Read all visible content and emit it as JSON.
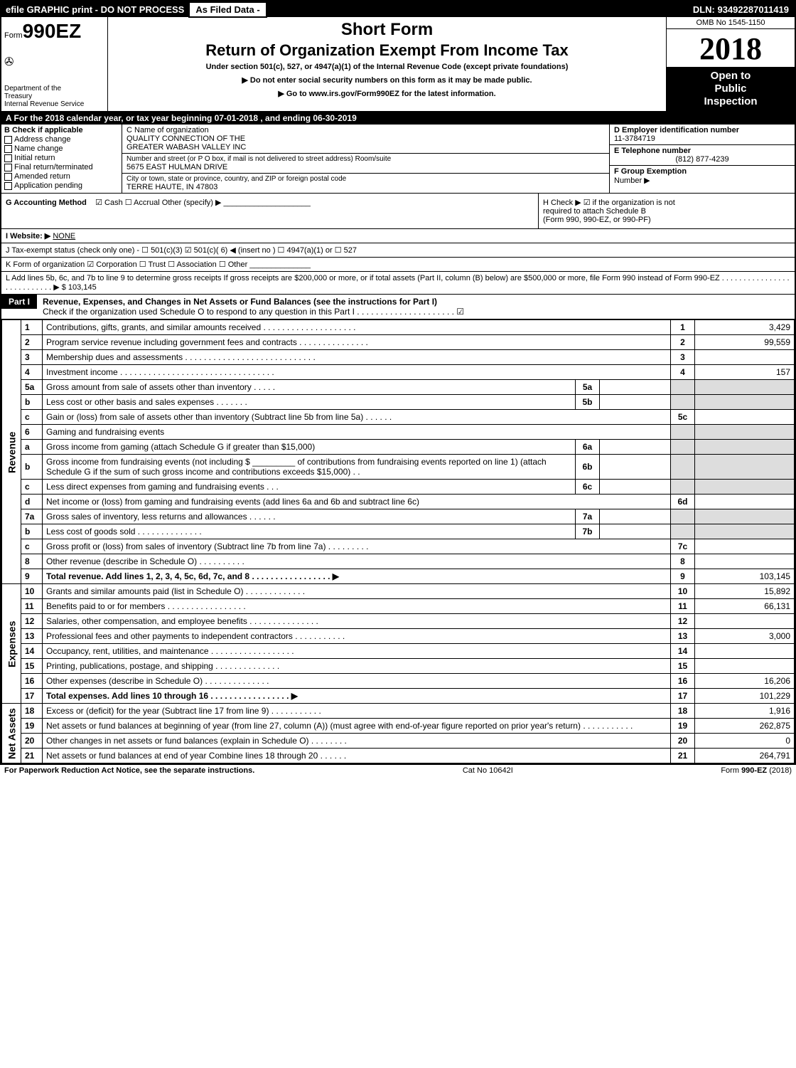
{
  "topbar": {
    "left": "efile GRAPHIC print - DO NOT PROCESS",
    "mid": "As Filed Data -",
    "right": "DLN: 93492287011419"
  },
  "header": {
    "form_prefix": "Form",
    "form_number": "990EZ",
    "dept1": "Department of the",
    "dept2": "Treasury",
    "dept3": "Internal Revenue Service",
    "short_form": "Short Form",
    "return_title": "Return of Organization Exempt From Income Tax",
    "sub": "Under section 501(c), 527, or 4947(a)(1) of the Internal Revenue Code (except private foundations)",
    "arrow1": "▶ Do not enter social security numbers on this form as it may be made public.",
    "arrow2": "▶ Go to www.irs.gov/Form990EZ for the latest information.",
    "omb": "OMB No 1545-1150",
    "year": "2018",
    "open1": "Open to",
    "open2": "Public",
    "open3": "Inspection"
  },
  "lineA": "A  For the 2018 calendar year, or tax year beginning 07-01-2018           , and ending 06-30-2019",
  "B": {
    "title": "B  Check if applicable",
    "items": [
      "Address change",
      "Name change",
      "Initial return",
      "Final return/terminated",
      "Amended return",
      "Application pending"
    ]
  },
  "C": {
    "label": "C Name of organization",
    "name1": "QUALITY CONNECTION OF THE",
    "name2": "GREATER WABASH VALLEY INC",
    "addr_label": "Number and street (or P O box, if mail is not delivered to street address)  Room/suite",
    "addr": "5675 EAST HULMAN DRIVE",
    "city_label": "City or town, state or province, country, and ZIP or foreign postal code",
    "city": "TERRE HAUTE, IN  47803"
  },
  "D": {
    "label": "D Employer identification number",
    "ein": "11-3784719",
    "E_label": "E Telephone number",
    "phone": "(812) 877-4239",
    "F_label": "F Group Exemption",
    "F_label2": "Number   ▶"
  },
  "G": {
    "label": "G Accounting Method",
    "opts": "☑ Cash   ☐ Accrual   Other (specify) ▶ ____________________"
  },
  "H": {
    "text1": "H   Check ▶  ☑  if the organization is not",
    "text2": "required to attach Schedule B",
    "text3": "(Form 990, 990-EZ, or 990-PF)"
  },
  "I": {
    "label": "I Website: ▶",
    "val": "NONE"
  },
  "J": "J Tax-exempt status (check only one) - ☐ 501(c)(3)  ☑ 501(c)( 6) ◀ (insert no ) ☐ 4947(a)(1) or ☐ 527",
  "K": "K Form of organization    ☑ Corporation  ☐ Trust  ☐ Association  ☐ Other  ______________",
  "L": {
    "text": "L Add lines 5b, 6c, and 7b to line 9 to determine gross receipts  If gross receipts are $200,000 or more, or if total assets (Part II, column (B) below) are $500,000 or more, file Form 990 instead of Form 990-EZ  .  .  .  .  .  .  .  .  .  .  .  .  .  .  .  .  .  .  .  .  .  .  .  .  .  .  . ▶ $ 103,145"
  },
  "partI": {
    "label": "Part I",
    "title": "Revenue, Expenses, and Changes in Net Assets or Fund Balances (see the instructions for Part I)",
    "sub": "Check if the organization used Schedule O to respond to any question in this Part I  .  .  .  .  .  .  .  .  .  .  .  .  .  .  .  .  .  .  .  .  . ☑"
  },
  "sections": {
    "revenue": "Revenue",
    "expenses": "Expenses",
    "net": "Net Assets"
  },
  "rows": [
    {
      "n": "1",
      "d": "Contributions, gifts, grants, and similar amounts received  .  .  .  .  .  .  .  .  .  .  .  .  .  .  .  .  .  .  .  .",
      "r": "1",
      "v": "3,429"
    },
    {
      "n": "2",
      "d": "Program service revenue including government fees and contracts  .  .  .  .  .  .  .  .  .  .  .  .  .  .  .",
      "r": "2",
      "v": "99,559"
    },
    {
      "n": "3",
      "d": "Membership dues and assessments  .  .  .  .  .  .  .  .  .  .  .  .  .  .  .  .  .  .  .  .  .  .  .  .  .  .  .  .",
      "r": "3",
      "v": ""
    },
    {
      "n": "4",
      "d": "Investment income  .  .  .  .  .  .  .  .  .  .  .  .  .  .  .  .  .  .  .  .  .  .  .  .  .  .  .  .  .  .  .  .  .",
      "r": "4",
      "v": "157"
    },
    {
      "n": "5a",
      "d": "Gross amount from sale of assets other than inventory  .  .  .  .  .",
      "box": "5a",
      "bv": ""
    },
    {
      "n": "b",
      "d": "Less  cost or other basis and sales expenses  .  .  .  .  .  .  .",
      "box": "5b",
      "bv": ""
    },
    {
      "n": "c",
      "d": "Gain or (loss) from sale of assets other than inventory (Subtract line 5b from line 5a) .  .  .  .  .  .",
      "r": "5c",
      "v": ""
    },
    {
      "n": "6",
      "d": "Gaming and fundraising events",
      "plain": true
    },
    {
      "n": "a",
      "d": "Gross income from gaming (attach Schedule G if greater than $15,000)",
      "box": "6a",
      "bv": ""
    },
    {
      "n": "b",
      "d": "Gross income from fundraising events (not including $ _________ of contributions from fundraising events reported on line 1) (attach Schedule G if the sum of such gross income and contributions exceeds $15,000)    .   .",
      "box": "6b",
      "bv": ""
    },
    {
      "n": "c",
      "d": "Less  direct expenses from gaming and fundraising events       .   .   .",
      "box": "6c",
      "bv": ""
    },
    {
      "n": "d",
      "d": "Net income or (loss) from gaming and fundraising events (add lines 6a and 6b and subtract line 6c)",
      "r": "6d",
      "v": ""
    },
    {
      "n": "7a",
      "d": "Gross sales of inventory, less returns and allowances  .  .  .  .  .  .",
      "box": "7a",
      "bv": ""
    },
    {
      "n": "b",
      "d": "Less  cost of goods sold              .  .  .  .  .  .  .  .  .  .  .  .  .  .",
      "box": "7b",
      "bv": ""
    },
    {
      "n": "c",
      "d": "Gross profit or (loss) from sales of inventory (Subtract line 7b from line 7a) .  .  .  .  .  .  .  .  .",
      "r": "7c",
      "v": ""
    },
    {
      "n": "8",
      "d": "Other revenue (describe in Schedule O)                                .  .  .  .  .  .  .  .  .  .",
      "r": "8",
      "v": ""
    },
    {
      "n": "9",
      "d": "Total revenue. Add lines 1, 2, 3, 4, 5c, 6d, 7c, and 8  .  .  .  .  .  .  .  .  .  .  .  .  .  .  .  .  .  ▶",
      "r": "9",
      "v": "103,145",
      "bold": true
    }
  ],
  "exp_rows": [
    {
      "n": "10",
      "d": "Grants and similar amounts paid (list in Schedule O)            .   .   .   .   .   .   .   .   .   .   .   .   .",
      "r": "10",
      "v": "15,892"
    },
    {
      "n": "11",
      "d": "Benefits paid to or for members                     .   .   .   .   .   .   .   .   .   .   .   .   .   .   .   .   .",
      "r": "11",
      "v": "66,131"
    },
    {
      "n": "12",
      "d": "Salaries, other compensation, and employee benefits  .   .   .   .   .   .   .   .   .   .   .   .   .   .   .",
      "r": "12",
      "v": ""
    },
    {
      "n": "13",
      "d": "Professional fees and other payments to independent contractors   .   .   .   .   .   .   .   .   .   .   .",
      "r": "13",
      "v": "3,000"
    },
    {
      "n": "14",
      "d": "Occupancy, rent, utilities, and maintenance  .   .   .   .   .   .   .   .   .   .   .   .   .   .   .   .   .   .",
      "r": "14",
      "v": ""
    },
    {
      "n": "15",
      "d": "Printing, publications, postage, and shipping              .   .   .   .   .   .   .   .   .   .   .   .   .   .",
      "r": "15",
      "v": ""
    },
    {
      "n": "16",
      "d": "Other expenses (describe in Schedule O)                   .   .   .   .   .   .   .   .   .   .   .   .   .   .",
      "r": "16",
      "v": "16,206"
    },
    {
      "n": "17",
      "d": "Total expenses. Add lines 10 through 16        .   .   .   .   .   .   .   .   .   .   .   .   .   .   .   .   . ▶",
      "r": "17",
      "v": "101,229",
      "bold": true
    }
  ],
  "net_rows": [
    {
      "n": "18",
      "d": "Excess or (deficit) for the year (Subtract line 17 from line 9)       .   .   .   .   .   .   .   .   .   .   .",
      "r": "18",
      "v": "1,916"
    },
    {
      "n": "19",
      "d": "Net assets or fund balances at beginning of year (from line 27, column (A)) (must agree with end-of-year figure reported on prior year's return)                 .   .   .   .   .   .   .   .   .   .   .",
      "r": "19",
      "v": "262,875"
    },
    {
      "n": "20",
      "d": "Other changes in net assets or fund balances (explain in Schedule O)      .   .   .   .   .   .   .   .",
      "r": "20",
      "v": "0"
    },
    {
      "n": "21",
      "d": "Net assets or fund balances at end of year  Combine lines 18 through 20         .  .  .  .  .  .",
      "r": "21",
      "v": "264,791"
    }
  ],
  "footer": {
    "left": "For Paperwork Reduction Act Notice, see the separate instructions.",
    "mid": "Cat No 10642I",
    "right": "Form 990-EZ (2018)"
  }
}
